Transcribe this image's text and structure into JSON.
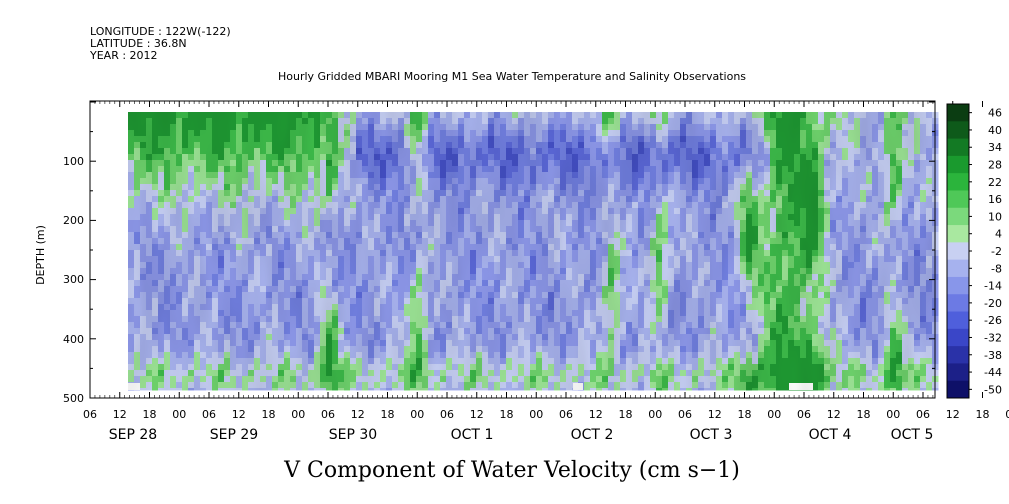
{
  "header": {
    "longitude": "LONGITUDE : 122W(-122)",
    "latitude": "LATITUDE : 36.8N",
    "year": "YEAR : 2012"
  },
  "chart_data": {
    "type": "heatmap",
    "title": "Hourly Gridded MBARI Mooring M1 Sea Water Temperature and Salinity Observations",
    "caption": "V Component of Water Velocity (cm s−1)",
    "ylabel": "DEPTH (m)",
    "ylim": [
      500,
      0
    ],
    "y_ticks": [
      "100",
      "200",
      "300",
      "400",
      "500"
    ],
    "x_hour_labels": [
      "06",
      "12",
      "18",
      "00",
      "06",
      "12",
      "18",
      "00",
      "06",
      "12",
      "18",
      "00",
      "06",
      "12",
      "18",
      "00",
      "06",
      "12",
      "18",
      "00",
      "06",
      "12",
      "18",
      "00",
      "06",
      "12",
      "18",
      "00",
      "06",
      "12",
      "18",
      "00",
      "06"
    ],
    "x_day_labels": [
      "SEP 28",
      "SEP 29",
      "SEP 30",
      "OCT 1",
      "OCT 2",
      "OCT 3",
      "OCT 4",
      "OCT 5"
    ],
    "colorbar": {
      "labels": [
        "46",
        "40",
        "34",
        "28",
        "22",
        "16",
        "10",
        "4",
        "-2",
        "-8",
        "-14",
        "-20",
        "-26",
        "-32",
        "-38",
        "-44",
        "-50"
      ],
      "colors": [
        "#0b3d12",
        "#0e5a1a",
        "#137a24",
        "#1a9a2e",
        "#2bb43c",
        "#4fc858",
        "#7bd97c",
        "#a9e8a0",
        "#c8d0f2",
        "#a6b2ee",
        "#8896ea",
        "#6c7ae4",
        "#4f5fdc",
        "#3a46c8",
        "#2a32a8",
        "#1c2088",
        "#0e1068"
      ]
    },
    "grid": false
  }
}
